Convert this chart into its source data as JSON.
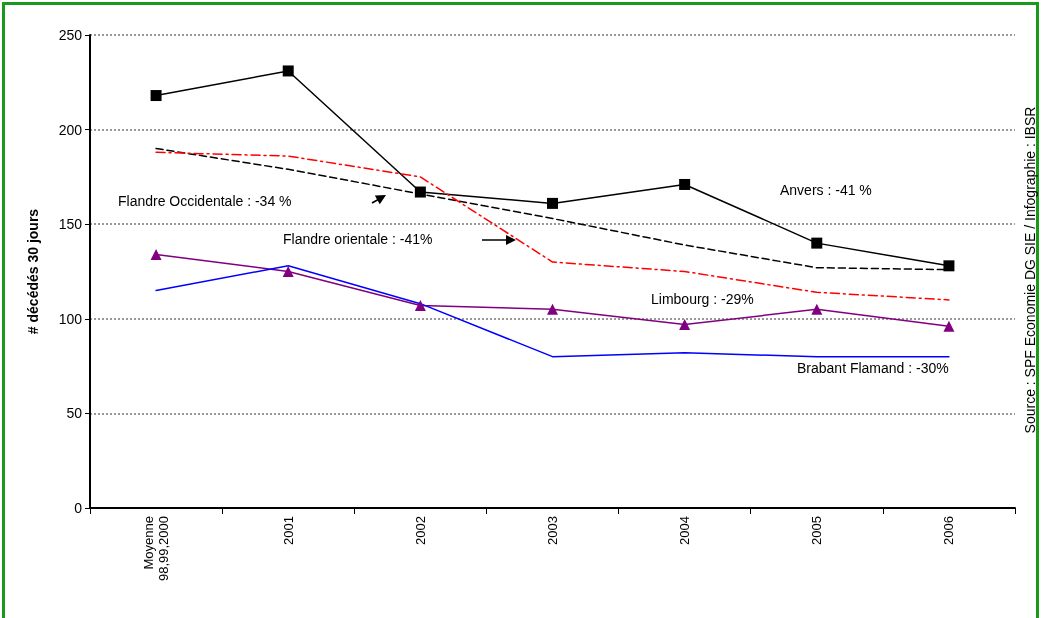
{
  "chart_data": {
    "type": "line",
    "ylabel": "# décédés 30 jours",
    "categories": [
      "Moyenne\n98,99,2000",
      "2001",
      "2002",
      "2003",
      "2004",
      "2005",
      "2006"
    ],
    "series": [
      {
        "color": "#000000",
        "marker": "square",
        "line_style": "solid",
        "values": [
          218,
          231,
          167,
          161,
          171,
          140,
          128
        ]
      },
      {
        "color": "#000000",
        "marker": "none",
        "line_style": "dashed",
        "values": [
          190,
          179,
          166,
          153,
          139,
          127,
          126
        ]
      },
      {
        "color": "#ff0000",
        "marker": "none",
        "line_style": "dashdot",
        "values": [
          188,
          186,
          175,
          130,
          125,
          114,
          110
        ]
      },
      {
        "color": "#800080",
        "marker": "triangle",
        "line_style": "solid",
        "values": [
          134,
          125,
          107,
          105,
          97,
          105,
          96
        ]
      },
      {
        "color": "#0000ff",
        "marker": "none",
        "line_style": "solid",
        "values": [
          115,
          128,
          108,
          80,
          82,
          80,
          80
        ]
      }
    ],
    "ylim": [
      0,
      250
    ],
    "yticks": [
      0,
      50,
      100,
      150,
      200,
      250
    ],
    "grid": "y",
    "annotations": [
      "Flandre Occidentale : -34 %",
      "Flandre orientale : -41%",
      "Anvers : -41 %",
      "Limbourg : -29%",
      "Brabant Flamand : -30%",
      "Source : SPF Economie DG SIE / Infographie : IBSR"
    ]
  }
}
